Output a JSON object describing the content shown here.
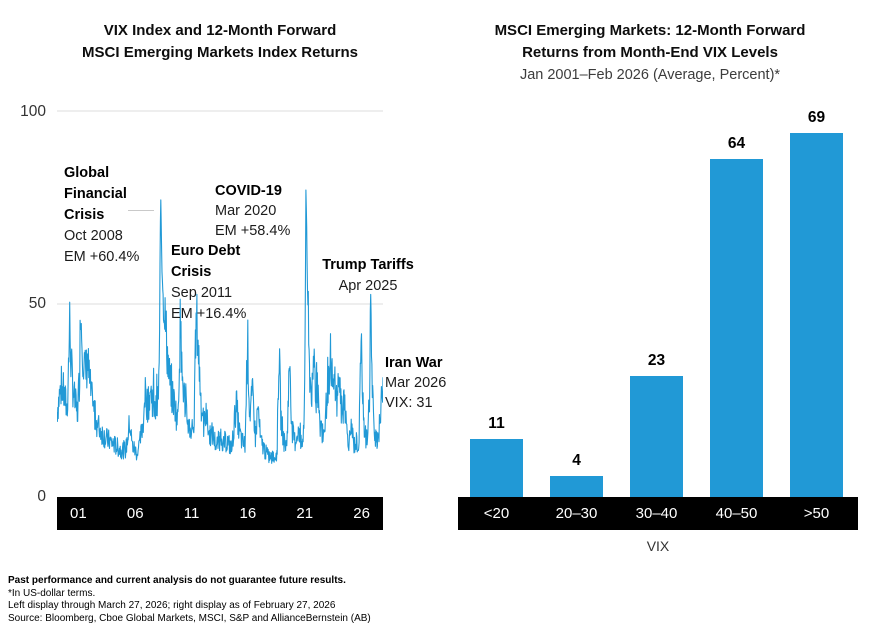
{
  "colors": {
    "accent_blue": "#2199D6",
    "axis_bar": "#000000",
    "gridline": "#DCDCDC"
  },
  "footer": {
    "disclaimer": "Past performance and current analysis do not guarantee future results.",
    "note_terms": "*In US-dollar terms.",
    "note_dates": "Left display through March 27, 2026; right display as of February 27, 2026",
    "source": "Source: Bloomberg, Cboe Global Markets, MSCI, S&P and AllianceBernstein (AB)"
  },
  "chart_data": [
    {
      "type": "line",
      "title": "VIX Index and 12-Month Forward MSCI Emerging Markets Index Returns",
      "title_lines": [
        "VIX Index and 12-Month Forward",
        "MSCI Emerging Markets Index Returns"
      ],
      "series_name": "VIX Index",
      "ylim": [
        0,
        100
      ],
      "y_tick_labels": [
        "100",
        "50",
        "0"
      ],
      "x_tick_labels": [
        "01",
        "06",
        "11",
        "16",
        "21",
        "26"
      ],
      "x_range_years": [
        2000.7,
        2026.25
      ],
      "grid": "horizontal",
      "events": [
        {
          "name": "Global Financial Crisis",
          "name_lines": [
            "Global",
            "Financial",
            "Crisis"
          ],
          "date": "Oct 2008",
          "note": "EM +60.4%"
        },
        {
          "name": "COVID-19",
          "name_lines": [
            "COVID-19"
          ],
          "date": "Mar 2020",
          "note": "EM +58.4%"
        },
        {
          "name": "Euro Debt Crisis",
          "name_lines": [
            "Euro Debt",
            "Crisis"
          ],
          "date": "Sep 2011",
          "note": "EM +16.4%"
        },
        {
          "name": "Trump Tariffs",
          "name_lines": [
            "Trump Tariffs"
          ],
          "date": "Apr 2025"
        },
        {
          "name": "Iran War",
          "name_lines": [
            "Iran War"
          ],
          "date": "Mar 2026",
          "note": "VIX: 31"
        }
      ],
      "anchors": [
        [
          2000.7,
          22
        ],
        [
          2000.9,
          26
        ],
        [
          2001.1,
          28
        ],
        [
          2001.3,
          25
        ],
        [
          2001.5,
          22
        ],
        [
          2001.7,
          44
        ],
        [
          2001.82,
          33
        ],
        [
          2001.95,
          28
        ],
        [
          2002.1,
          24
        ],
        [
          2002.3,
          21
        ],
        [
          2002.45,
          30
        ],
        [
          2002.55,
          47
        ],
        [
          2002.68,
          40
        ],
        [
          2002.82,
          34
        ],
        [
          2002.95,
          31
        ],
        [
          2003.1,
          35
        ],
        [
          2003.25,
          29
        ],
        [
          2003.5,
          23
        ],
        [
          2003.8,
          19
        ],
        [
          2004.1,
          17
        ],
        [
          2004.5,
          15
        ],
        [
          2004.9,
          14
        ],
        [
          2005.3,
          13
        ],
        [
          2005.7,
          12
        ],
        [
          2006.1,
          12
        ],
        [
          2006.4,
          19
        ],
        [
          2006.6,
          13
        ],
        [
          2007.0,
          11
        ],
        [
          2007.2,
          14
        ],
        [
          2007.45,
          19
        ],
        [
          2007.6,
          26
        ],
        [
          2007.85,
          23
        ],
        [
          2008.0,
          27
        ],
        [
          2008.2,
          25
        ],
        [
          2008.4,
          21
        ],
        [
          2008.6,
          24
        ],
        [
          2008.72,
          32
        ],
        [
          2008.82,
          80
        ],
        [
          2008.92,
          61
        ],
        [
          2009.05,
          48
        ],
        [
          2009.2,
          44
        ],
        [
          2009.45,
          32
        ],
        [
          2009.7,
          26
        ],
        [
          2009.95,
          23
        ],
        [
          2010.15,
          19
        ],
        [
          2010.37,
          44
        ],
        [
          2010.5,
          31
        ],
        [
          2010.7,
          25
        ],
        [
          2010.95,
          19
        ],
        [
          2011.2,
          17
        ],
        [
          2011.45,
          19
        ],
        [
          2011.6,
          46
        ],
        [
          2011.72,
          42
        ],
        [
          2011.85,
          33
        ],
        [
          2012.0,
          24
        ],
        [
          2012.2,
          18
        ],
        [
          2012.4,
          21
        ],
        [
          2012.6,
          16
        ],
        [
          2012.9,
          16
        ],
        [
          2013.2,
          13
        ],
        [
          2013.5,
          15
        ],
        [
          2013.8,
          14
        ],
        [
          2014.1,
          14
        ],
        [
          2014.4,
          12
        ],
        [
          2014.75,
          24
        ],
        [
          2014.95,
          17
        ],
        [
          2015.2,
          14
        ],
        [
          2015.45,
          13
        ],
        [
          2015.63,
          41
        ],
        [
          2015.8,
          21
        ],
        [
          2016.05,
          26
        ],
        [
          2016.25,
          15
        ],
        [
          2016.45,
          23
        ],
        [
          2016.65,
          14
        ],
        [
          2016.85,
          13
        ],
        [
          2017.1,
          11
        ],
        [
          2017.4,
          10
        ],
        [
          2017.7,
          10
        ],
        [
          2017.95,
          11
        ],
        [
          2018.1,
          38
        ],
        [
          2018.25,
          20
        ],
        [
          2018.5,
          14
        ],
        [
          2018.7,
          13
        ],
        [
          2018.95,
          36
        ],
        [
          2019.1,
          17
        ],
        [
          2019.35,
          14
        ],
        [
          2019.6,
          17
        ],
        [
          2019.8,
          13
        ],
        [
          2020.0,
          14
        ],
        [
          2020.13,
          30
        ],
        [
          2020.21,
          83
        ],
        [
          2020.32,
          56
        ],
        [
          2020.45,
          34
        ],
        [
          2020.6,
          28
        ],
        [
          2020.75,
          26
        ],
        [
          2020.85,
          37
        ],
        [
          2021.0,
          24
        ],
        [
          2021.1,
          31
        ],
        [
          2021.25,
          19
        ],
        [
          2021.45,
          17
        ],
        [
          2021.6,
          16
        ],
        [
          2021.75,
          20
        ],
        [
          2021.92,
          30
        ],
        [
          2022.05,
          26
        ],
        [
          2022.18,
          35
        ],
        [
          2022.35,
          26
        ],
        [
          2022.5,
          31
        ],
        [
          2022.65,
          23
        ],
        [
          2022.8,
          33
        ],
        [
          2022.95,
          23
        ],
        [
          2023.1,
          20
        ],
        [
          2023.2,
          28
        ],
        [
          2023.4,
          17
        ],
        [
          2023.6,
          14
        ],
        [
          2023.8,
          18
        ],
        [
          2023.95,
          13
        ],
        [
          2024.15,
          14
        ],
        [
          2024.35,
          13
        ],
        [
          2024.58,
          39
        ],
        [
          2024.7,
          21
        ],
        [
          2024.85,
          16
        ],
        [
          2024.95,
          14
        ],
        [
          2025.1,
          19
        ],
        [
          2025.2,
          27
        ],
        [
          2025.28,
          52
        ],
        [
          2025.38,
          29
        ],
        [
          2025.5,
          20
        ],
        [
          2025.65,
          16
        ],
        [
          2025.8,
          15
        ],
        [
          2025.95,
          17
        ],
        [
          2026.05,
          20
        ],
        [
          2026.15,
          25
        ],
        [
          2026.25,
          31
        ]
      ]
    },
    {
      "type": "bar",
      "title": "MSCI Emerging Markets: 12-Month Forward Returns from Month-End VIX Levels",
      "title_lines": [
        "MSCI Emerging Markets: 12-Month Forward",
        "Returns from Month-End VIX Levels"
      ],
      "subtitle": "Jan 2001–Feb 2026 (Average, Percent)*",
      "categories": [
        "<20",
        "20–30",
        "30–40",
        "40–50",
        ">50"
      ],
      "values": [
        11,
        4,
        23,
        64,
        69
      ],
      "xlabel": "VIX",
      "ylabel": "",
      "ylim": [
        0,
        75
      ],
      "grid": "off",
      "legend": "none"
    }
  ]
}
